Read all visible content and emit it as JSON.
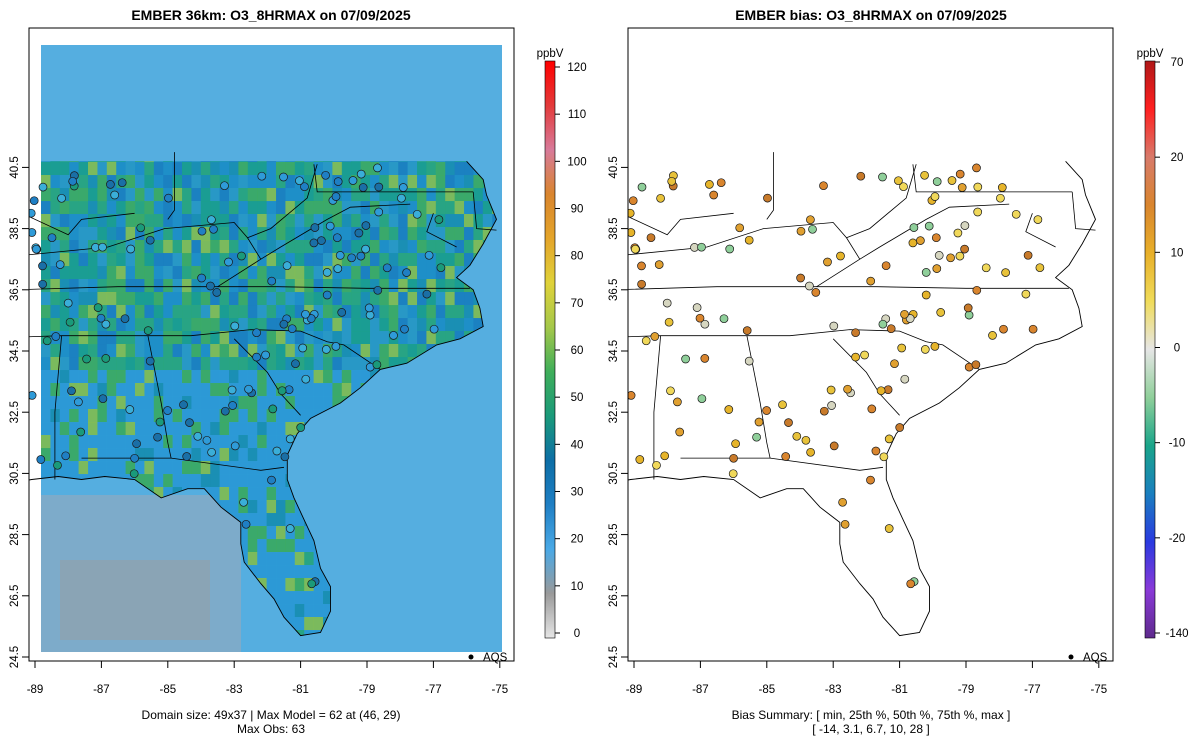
{
  "left_panel": {
    "title": "EMBER 36km: O3_8HRMAX on 07/09/2025",
    "legend_marker_label": "AQS",
    "caption_line1": "Domain size: 49x37 | Max Model = 62 at (46, 29)",
    "caption_line2": "Max Obs: 63",
    "colorbar": {
      "unit": "ppbV",
      "min": 0,
      "max": 120,
      "ticks": [
        "0",
        "10",
        "20",
        "30",
        "40",
        "50",
        "60",
        "70",
        "80",
        "90",
        "100",
        "110",
        "120"
      ],
      "stops": [
        "#e6e6e6",
        "#9a9a9a",
        "#4aa9e6",
        "#1f7fc4",
        "#0d6ea6",
        "#1a9a7a",
        "#3fae5a",
        "#a5c84a",
        "#e0d23a",
        "#e4a52a",
        "#d9852e",
        "#d87a9a",
        "#e33a3a",
        "#ff0000"
      ]
    }
  },
  "right_panel": {
    "title": "EMBER bias: O3_8HRMAX on 07/09/2025",
    "legend_marker_label": "AQS",
    "caption_line1": "Bias Summary: [ min, 25th %, 50th %, 75th %, max ]",
    "caption_line2": "[ -14,   3.1,   6.7,   10,   28 ]",
    "colorbar": {
      "unit": "ppbV",
      "ticks": [
        "-140",
        "-20",
        "-10",
        "0",
        "10",
        "20",
        "70"
      ],
      "stops": [
        "#5e2a8c",
        "#8a3ad8",
        "#2a3ae0",
        "#1a7fbf",
        "#1aa58a",
        "#8fcf9a",
        "#e6e6e6",
        "#f0dc5a",
        "#e8b02a",
        "#d9852e",
        "#d87a6a",
        "#ff2020",
        "#b01818"
      ]
    }
  },
  "axes": {
    "x_ticks": [
      "-89",
      "-87",
      "-85",
      "-83",
      "-81",
      "-79",
      "-77",
      "-75"
    ],
    "y_ticks": [
      "24.5",
      "26.5",
      "28.5",
      "30.5",
      "32.5",
      "34.5",
      "36.5",
      "38.5",
      "40.5"
    ]
  },
  "colors": {
    "ocean_model": "#55aee0",
    "land_model_base": "#1f8fc8",
    "boundary": "#000000",
    "frame": "#000000"
  }
}
